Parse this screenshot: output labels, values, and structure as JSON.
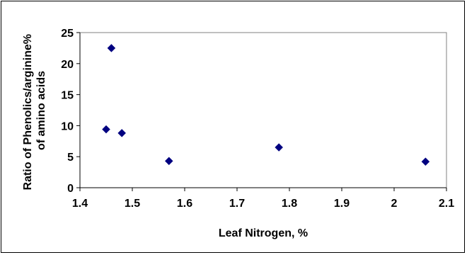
{
  "chart_data": {
    "type": "scatter",
    "xlabel": "Leaf Nitrogen, %",
    "ylabel_lines": [
      "Ratio of Phenolics/arginine%",
      "of amino acids"
    ],
    "xlim": [
      1.4,
      2.1
    ],
    "ylim": [
      0,
      25
    ],
    "x_ticks": [
      "1.4",
      "1.5",
      "1.6",
      "1.7",
      "1.8",
      "1.9",
      "2",
      "2.1"
    ],
    "y_ticks": [
      "0",
      "5",
      "10",
      "15",
      "20",
      "25"
    ],
    "grid": false,
    "marker": "diamond",
    "marker_color": "#000080",
    "points": [
      {
        "x": 1.45,
        "y": 9.4
      },
      {
        "x": 1.46,
        "y": 22.5
      },
      {
        "x": 1.48,
        "y": 8.8
      },
      {
        "x": 1.57,
        "y": 4.3
      },
      {
        "x": 1.78,
        "y": 6.5
      },
      {
        "x": 2.06,
        "y": 4.2
      }
    ]
  }
}
